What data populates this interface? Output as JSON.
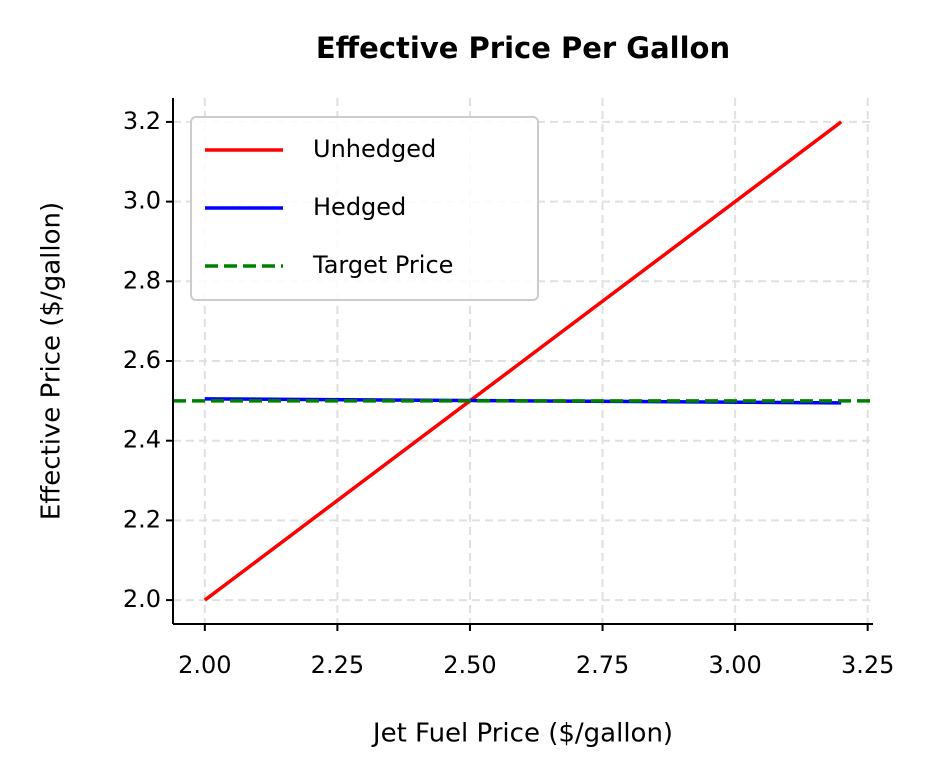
{
  "chart_data": {
    "type": "line",
    "title": "Effective Price Per Gallon",
    "x_label": "Jet Fuel Price ($/gallon)",
    "y_label": "Effective Price ($/gallon)",
    "x": [
      2.0,
      2.6,
      3.2
    ],
    "series": [
      {
        "name": "Unhedged",
        "color": "#ff0000",
        "values": [
          2.0,
          2.6,
          3.2
        ]
      },
      {
        "name": "Hedged",
        "color": "#0000ff",
        "values": [
          2.505,
          2.5,
          2.495
        ]
      }
    ],
    "hline": {
      "name": "Target Price",
      "color": "#008000",
      "value": 2.5,
      "style": "dashed"
    },
    "xlim": [
      1.94,
      3.26
    ],
    "ylim": [
      1.94,
      3.26
    ],
    "xticks": [
      {
        "value": 2.0,
        "label": "2.00"
      },
      2.25,
      {
        "value": 2.5,
        "label": "2.50"
      },
      2.75,
      {
        "value": 3.0,
        "label": "3.00"
      },
      3.25
    ],
    "yticks": [
      {
        "value": 2.0,
        "label": "2.0"
      },
      2.2,
      2.4,
      2.6,
      2.8,
      {
        "value": 3.0,
        "label": "3.0"
      },
      3.2
    ],
    "grid": true,
    "legend": "upper left"
  }
}
